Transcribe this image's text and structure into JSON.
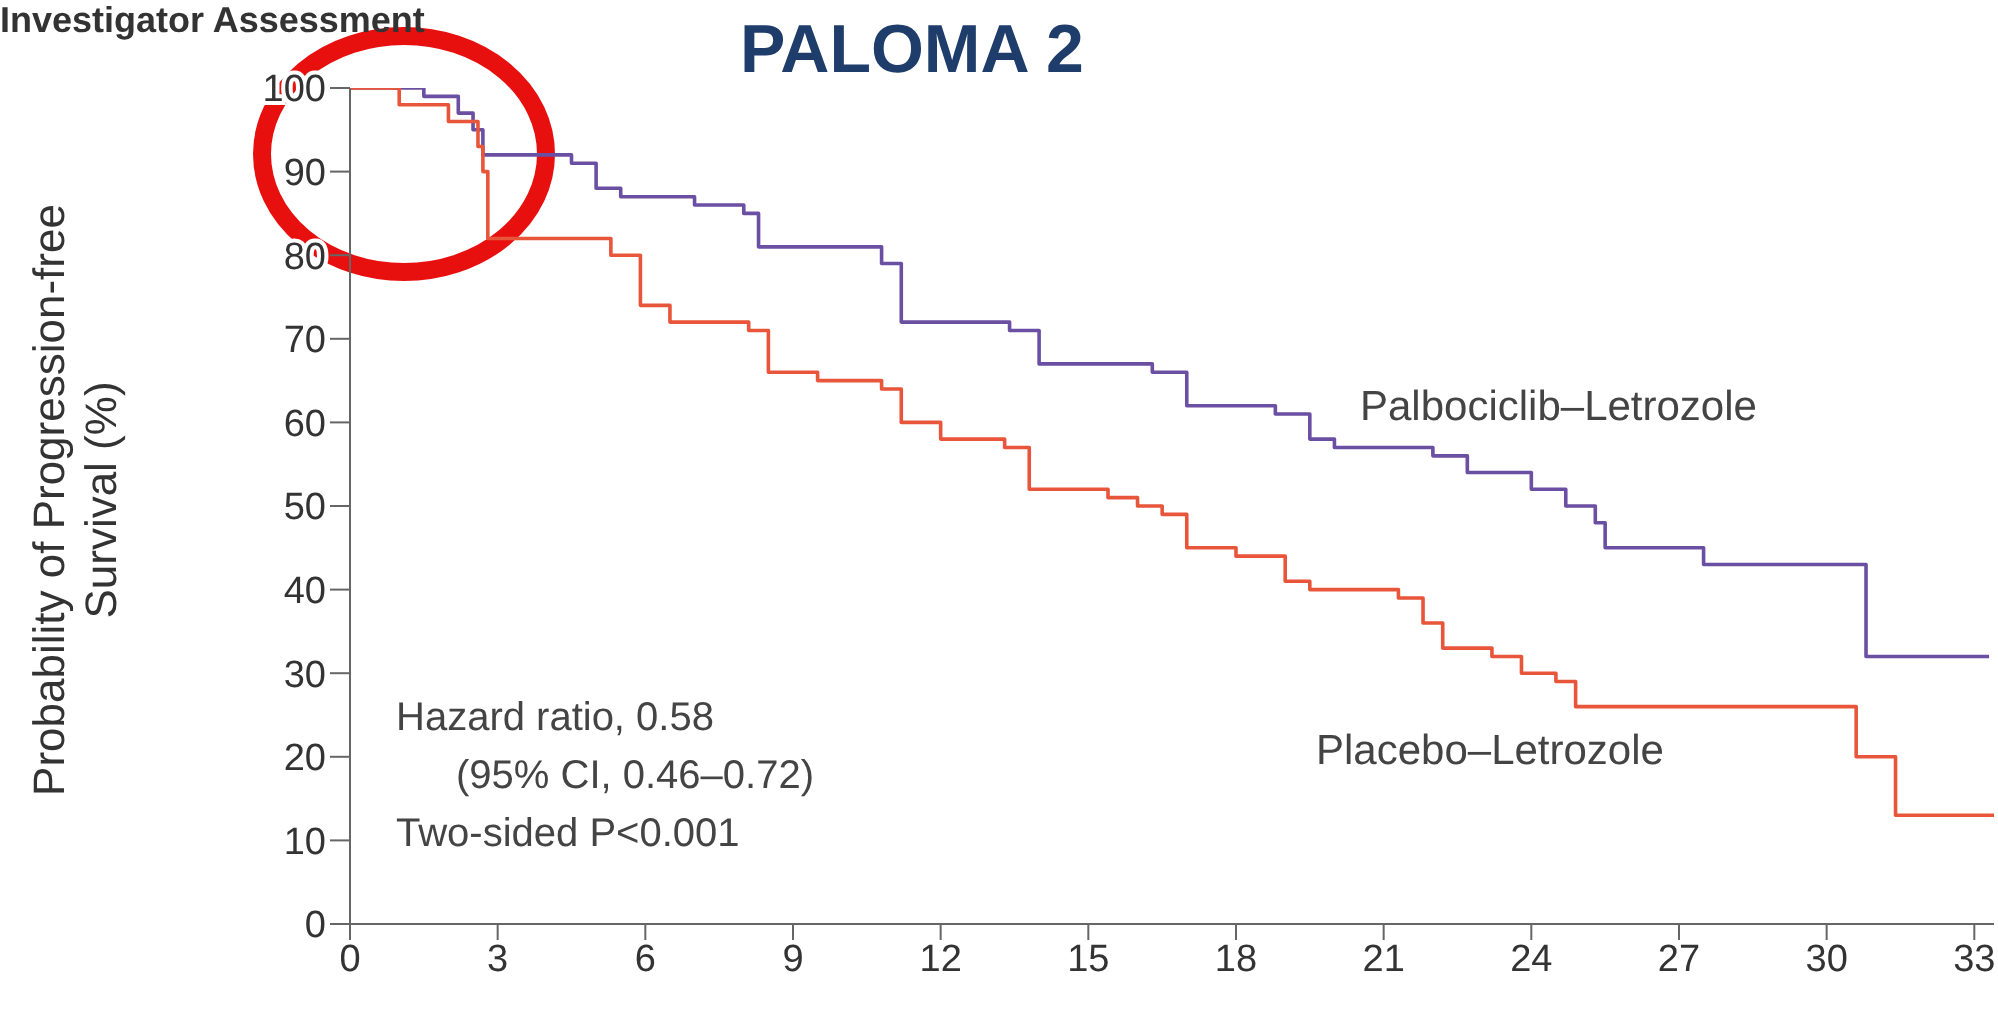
{
  "chart_data": {
    "type": "step",
    "title": "PALOMA 2",
    "ylabel": "Probability of Progression-free Survival (%)",
    "annotations": [
      "Investigator Assessment",
      "Hazard ratio, 0.58",
      "(95% CI, 0.46–0.72)",
      "Two-sided P<0.001"
    ],
    "xlim": [
      0,
      33.4
    ],
    "xticks": [
      0,
      3,
      6,
      9,
      12,
      15,
      18,
      21,
      24,
      27,
      30,
      33
    ],
    "ylim": [
      0,
      100
    ],
    "yticks": [
      0,
      10,
      20,
      30,
      40,
      50,
      60,
      70,
      80,
      90,
      100
    ],
    "grid": false,
    "series": [
      {
        "name": "Palbociclib–Letrozole",
        "color": "#6a4fa3",
        "x": [
          0,
          1.5,
          2.2,
          2.5,
          2.7,
          4.5,
          5.0,
          5.5,
          7.0,
          8.0,
          8.3,
          10.8,
          11.2,
          13.4,
          14.0,
          16.3,
          17.0,
          18.8,
          19.5,
          20.0,
          22.0,
          22.7,
          24.0,
          24.7,
          25.3,
          25.5,
          27.5,
          30.8,
          33.3
        ],
        "values": [
          100,
          99,
          97,
          95,
          92,
          91,
          88,
          87,
          86,
          85,
          81,
          79,
          72,
          71,
          67,
          66,
          62,
          61,
          58,
          57,
          56,
          54,
          52,
          50,
          48,
          45,
          43,
          32,
          32
        ]
      },
      {
        "name": "Placebo–Letrozole",
        "color": "#e8553a",
        "x": [
          0,
          1.0,
          2.0,
          2.6,
          2.7,
          2.8,
          5.3,
          5.9,
          6.5,
          8.1,
          8.5,
          9.5,
          10.8,
          11.2,
          12.0,
          13.3,
          13.8,
          15.4,
          16.0,
          16.5,
          17.0,
          18.0,
          19.0,
          19.5,
          21.3,
          21.8,
          22.2,
          23.2,
          23.8,
          24.5,
          24.9,
          30.6,
          31.4,
          33.4
        ],
        "values": [
          100,
          98,
          96,
          93,
          90,
          82,
          80,
          74,
          72,
          71,
          66,
          65,
          64,
          60,
          58,
          57,
          52,
          51,
          50,
          49,
          45,
          44,
          41,
          40,
          39,
          36,
          33,
          32,
          30,
          29,
          26,
          20,
          13,
          13
        ]
      }
    ]
  }
}
